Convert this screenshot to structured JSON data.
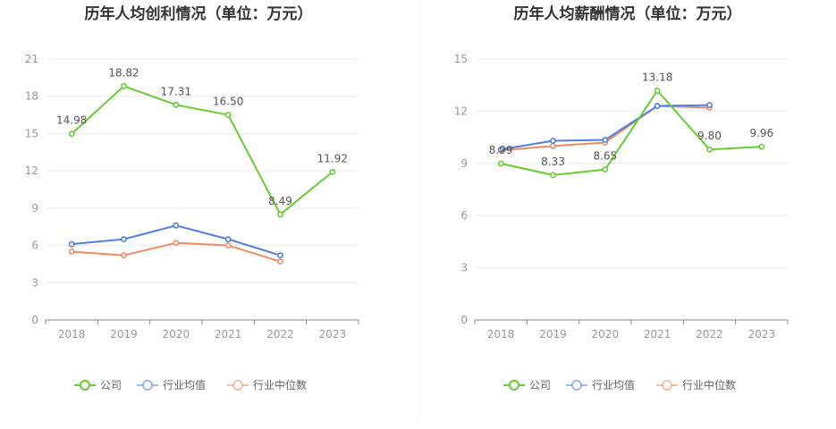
{
  "chart_data": [
    {
      "type": "line",
      "title": "历年人均创利情况（单位：万元）",
      "categories": [
        "2018",
        "2019",
        "2020",
        "2021",
        "2022",
        "2023"
      ],
      "ylim": [
        0,
        21
      ],
      "yticks": [
        0,
        3,
        6,
        9,
        12,
        15,
        18,
        21
      ],
      "grid": true,
      "legend_position": "bottom",
      "series": [
        {
          "name": "公司",
          "color": "#66cc33",
          "values": [
            14.98,
            18.82,
            17.31,
            16.5,
            8.49,
            11.92
          ],
          "labels": [
            "14.98",
            "18.82",
            "17.31",
            "16.50",
            "8.49",
            "11.92"
          ]
        },
        {
          "name": "行业均值",
          "color": "#4f7fe0",
          "values": [
            6.1,
            6.5,
            7.6,
            6.5,
            5.2,
            null
          ]
        },
        {
          "name": "行业中位数",
          "color": "#f08a62",
          "values": [
            5.5,
            5.2,
            6.2,
            6.0,
            4.7,
            null
          ]
        }
      ]
    },
    {
      "type": "line",
      "title": "历年人均薪酬情况（单位：万元）",
      "categories": [
        "2018",
        "2019",
        "2020",
        "2021",
        "2022",
        "2023"
      ],
      "ylim": [
        0,
        15
      ],
      "yticks": [
        0,
        3,
        6,
        9,
        12,
        15
      ],
      "grid": true,
      "legend_position": "bottom",
      "series": [
        {
          "name": "公司",
          "color": "#66cc33",
          "values": [
            8.99,
            8.33,
            8.65,
            13.18,
            9.8,
            9.96
          ],
          "labels": [
            "8.99",
            "8.33",
            "8.65",
            "13.18",
            "9.80",
            "9.96"
          ]
        },
        {
          "name": "行业均值",
          "color": "#4f7fe0",
          "values": [
            9.8,
            10.3,
            10.35,
            12.3,
            12.35,
            null
          ]
        },
        {
          "name": "行业中位数",
          "color": "#f08a62",
          "values": [
            9.75,
            10.0,
            10.2,
            12.3,
            12.2,
            null
          ]
        }
      ]
    }
  ]
}
